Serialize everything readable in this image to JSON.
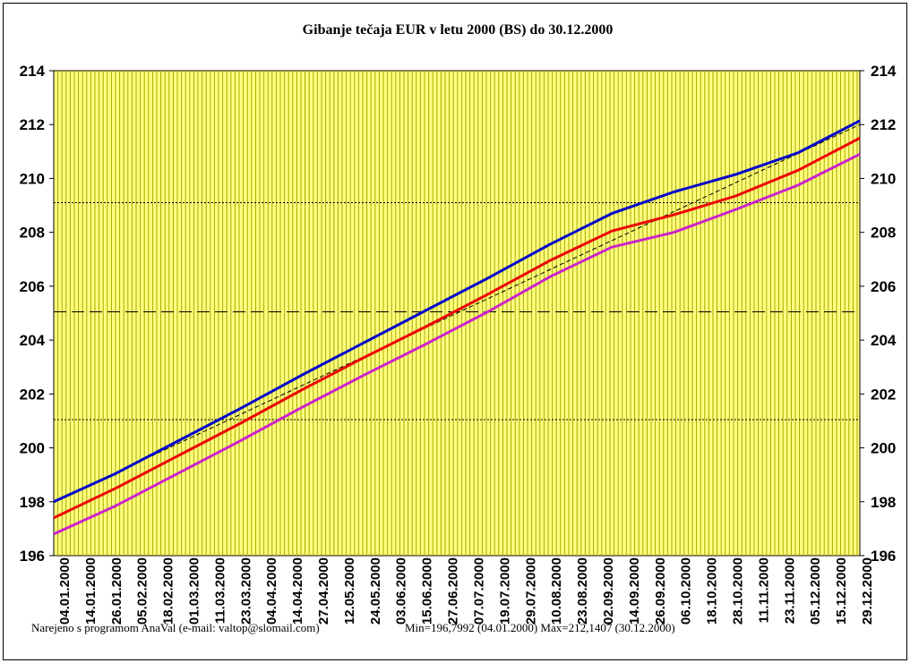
{
  "chart_data": {
    "type": "line",
    "title": "Gibanje tečaja EUR v letu 2000 (BS) do 30.12.2000",
    "ylim": [
      196,
      214
    ],
    "yticks": [
      196,
      198,
      200,
      202,
      204,
      206,
      208,
      210,
      212,
      214
    ],
    "ytick_labels": [
      "196",
      "198",
      "200",
      "202",
      "204",
      "206",
      "208",
      "210",
      "212",
      "214"
    ],
    "x_tick_labels": [
      "04.01.2000",
      "14.01.2000",
      "26.01.2000",
      "05.02.2000",
      "18.02.2000",
      "01.03.2000",
      "11.03.2000",
      "23.03.2000",
      "04.04.2000",
      "14.04.2000",
      "27.04.2000",
      "12.05.2000",
      "24.05.2000",
      "03.06.2000",
      "15.06.2000",
      "27.06.2000",
      "07.07.2000",
      "19.07.2000",
      "29.07.2000",
      "10.08.2000",
      "23.08.2000",
      "02.09.2000",
      "14.09.2000",
      "26.09.2000",
      "06.10.2000",
      "18.10.2000",
      "28.10.2000",
      "11.11.2000",
      "23.11.2000",
      "05.12.2000",
      "15.12.2000",
      "29.12.2000"
    ],
    "grid": "vertical lines between daily points, yellow background",
    "series": [
      {
        "color": "#0000cc",
        "values": [
          198.0,
          199.05,
          200.25,
          201.45,
          202.7,
          203.9,
          205.1,
          206.3,
          207.55,
          208.7,
          209.5,
          210.15,
          210.95,
          212.14
        ]
      },
      {
        "color": "#ee0000",
        "values": [
          197.4,
          198.5,
          199.7,
          200.9,
          202.15,
          203.35,
          204.5,
          205.7,
          206.95,
          208.05,
          208.65,
          209.35,
          210.3,
          211.5
        ]
      },
      {
        "color": "#cc22cc",
        "values": [
          196.8,
          197.85,
          199.05,
          200.25,
          201.5,
          202.7,
          203.85,
          205.05,
          206.35,
          207.45,
          208.0,
          208.85,
          209.75,
          210.9
        ]
      }
    ],
    "trend_line": {
      "from": 198.0,
      "to": 212.0
    },
    "reference_lines": [
      {
        "value": 209.1,
        "style": "dotted"
      },
      {
        "value": 205.05,
        "style": "dashed"
      },
      {
        "value": 201.05,
        "style": "dotted"
      }
    ]
  },
  "footer": {
    "credit": "Narejeno s programom AnaVal (e-mail: valtop@slomail.com)",
    "minmax": "Min=196,7992 (04.01.2000) Max=212,1407 (30.12.2000)"
  }
}
